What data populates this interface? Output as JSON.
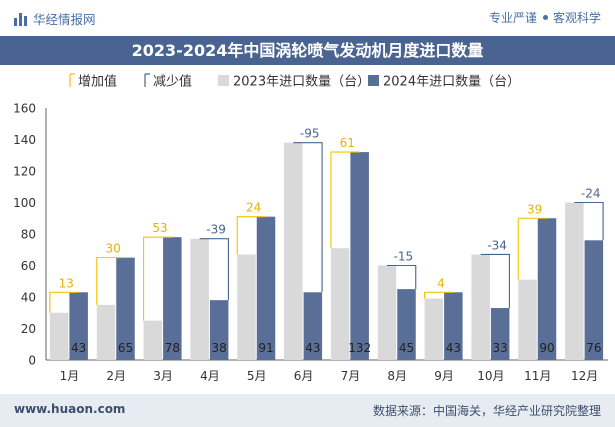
{
  "header": {
    "brand": "华经情报网",
    "tag_left": "专业严谨",
    "tag_right": "客观科学"
  },
  "footer": {
    "url": "www.huaon.com",
    "source": "数据来源：中国海关，华经产业研究院整理"
  },
  "colors": {
    "header_bar": "#4a6491",
    "bar_2023": "#d9d9d9",
    "bar_2024": "#5a6f97",
    "increase": "#f2c200",
    "increase_text": "#e6b400",
    "decrease": "#4a6491"
  },
  "chart_data": {
    "type": "bar",
    "title": "2023-2024年中国涡轮喷气发动机月度进口数量",
    "categories": [
      "1月",
      "2月",
      "3月",
      "4月",
      "5月",
      "6月",
      "7月",
      "8月",
      "9月",
      "10月",
      "11月",
      "12月"
    ],
    "series": [
      {
        "name": "2023年进口数量（台）",
        "values": [
          30,
          35,
          25,
          77,
          67,
          138,
          71,
          60,
          39,
          67,
          51,
          100
        ]
      },
      {
        "name": "2024年进口数量（台）",
        "values": [
          43,
          65,
          78,
          38,
          91,
          43,
          132,
          45,
          43,
          33,
          90,
          76
        ]
      }
    ],
    "change": [
      13,
      30,
      53,
      -39,
      24,
      -95,
      61,
      -15,
      4,
      -34,
      39,
      -24
    ],
    "legend": [
      "增加值",
      "减少值",
      "2023年进口数量（台）",
      "2024年进口数量（台）"
    ],
    "legend_position": "top",
    "ylim": [
      0,
      160
    ],
    "yticks": [
      0,
      20,
      40,
      60,
      80,
      100,
      120,
      140,
      160
    ],
    "grid": false
  }
}
